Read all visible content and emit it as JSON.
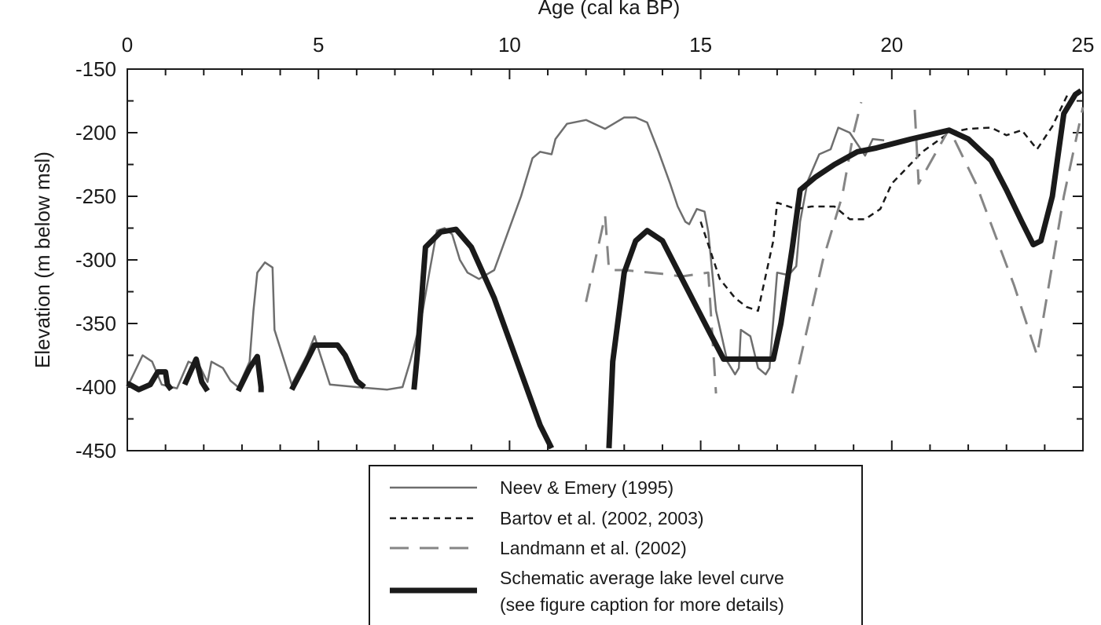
{
  "chart_data": {
    "type": "line",
    "x_label": "Age (cal ka BP)",
    "y_label": "Elevation (m below msl)",
    "xlim": [
      0,
      25
    ],
    "xticks": [
      0,
      5,
      10,
      15,
      20,
      25
    ],
    "xminorticks": [
      1,
      2,
      3,
      4,
      6,
      7,
      8,
      9,
      11,
      12,
      13,
      14,
      16,
      17,
      18,
      19,
      21,
      22,
      23,
      24
    ],
    "ylim": [
      -450,
      -150
    ],
    "yticks": [
      -450,
      -400,
      -350,
      -300,
      -250,
      -200,
      -150
    ],
    "yminorticks": [
      -425,
      -375,
      -325,
      -275,
      -225,
      -175
    ],
    "series": [
      {
        "name": "Neev & Emery (1995)",
        "color": "#6e6e6e",
        "width": 2.5,
        "dash": "none",
        "x": [
          0,
          0.4,
          0.65,
          0.9,
          1.3,
          1.6,
          1.9,
          2.1,
          2.2,
          2.5,
          2.7,
          2.9,
          3.2,
          3.3,
          3.4,
          3.6,
          3.8,
          3.85,
          4.3,
          4.7,
          4.9,
          5,
          5.3,
          6,
          6.8,
          7.2,
          7.4,
          7.7,
          7.9,
          8.1,
          8.3,
          8.5,
          8.7,
          8.9,
          9.2,
          9.6,
          10.3,
          10.6,
          10.8,
          11.1,
          11.2,
          11.5,
          12,
          12.5,
          13,
          13.3,
          13.6,
          13.9,
          14.2,
          14.4,
          14.6,
          14.7,
          14.9,
          15.1,
          15.2,
          15.4,
          15.7,
          15.9,
          16,
          16.05,
          16.3,
          16.5,
          16.7,
          16.8,
          17,
          17.3,
          17.5,
          17.6,
          17.8,
          18.1,
          18.4,
          18.6,
          18.9,
          19.3,
          19.5,
          19.8
        ],
        "values": [
          -400,
          -375,
          -380,
          -398,
          -401,
          -380,
          -384,
          -396,
          -380,
          -385,
          -395,
          -400,
          -380,
          -340,
          -310,
          -302,
          -306,
          -355,
          -398,
          -375,
          -360,
          -370,
          -398,
          -400,
          -402,
          -400,
          -380,
          -345,
          -310,
          -277,
          -275,
          -280,
          -300,
          -310,
          -315,
          -308,
          -250,
          -220,
          -215,
          -217,
          -205,
          -193,
          -190,
          -197,
          -188,
          -188,
          -192,
          -215,
          -240,
          -258,
          -270,
          -272,
          -260,
          -262,
          -278,
          -340,
          -380,
          -390,
          -385,
          -355,
          -360,
          -385,
          -390,
          -385,
          -310,
          -312,
          -305,
          -270,
          -238,
          -217,
          -213,
          -196,
          -200,
          -218,
          -205,
          -206
        ]
      },
      {
        "name": "Bartov et al. (2002, 2003)",
        "color": "#1a1a1a",
        "width": 2.5,
        "dash": "8 6",
        "x": [
          15,
          15.5,
          15.9,
          16.2,
          16.5,
          16.9,
          17,
          17.5,
          17.9,
          18.5,
          18.9,
          19.3,
          19.7,
          20,
          20.8,
          21.5,
          22,
          22.6,
          23,
          23.4,
          23.8,
          24.2,
          24.6
        ],
        "values": [
          -270,
          -315,
          -330,
          -337,
          -340,
          -285,
          -255,
          -260,
          -258,
          -258,
          -268,
          -268,
          -260,
          -240,
          -215,
          -200,
          -197,
          -196,
          -202,
          -198,
          -213,
          -195,
          -170
        ]
      },
      {
        "name": "Landmann et al. (2002)",
        "color": "#858585",
        "width": 3,
        "dash": "24 14",
        "x": [
          12,
          12.5,
          12.6,
          13,
          14,
          14.5,
          15.2,
          15.4,
          15.4,
          17.4,
          18.2,
          18.7,
          19,
          19.2,
          19.2,
          20.6,
          20.7,
          20.7,
          21.5,
          22.2,
          23.2,
          23.8,
          24.5,
          25
        ],
        "values": [
          -333,
          -265,
          -308,
          -308,
          -311,
          -313,
          -310,
          -405,
          null,
          -405,
          -300,
          -250,
          -200,
          -176,
          null,
          -182,
          -238,
          -240,
          -197,
          -240,
          -320,
          -375,
          -250,
          -180
        ]
      },
      {
        "name": "Schematic average lake level curve",
        "note": "(see figure caption for more details)",
        "color": "#1a1a1a",
        "width": 7,
        "dash": "none",
        "x": [
          0,
          0.3,
          0.6,
          0.8,
          1.0,
          1.05,
          1.15,
          1.15,
          1.5,
          1.8,
          1.95,
          2.1,
          2.1,
          2.9,
          3.2,
          3.4,
          3.5,
          3.5,
          3.5,
          4.3,
          4.6,
          4.9,
          5.5,
          5.7,
          6,
          6.2,
          6.2,
          7.5,
          7.6,
          7.8,
          8.2,
          8.6,
          9,
          9.6,
          10.2,
          10.8,
          11.1,
          11.1,
          12.6,
          12.7,
          13,
          13.3,
          13.6,
          14,
          14.6,
          15.2,
          15.6,
          16,
          16.5,
          16.9,
          17.1,
          17.4,
          17.6,
          18,
          18.5,
          19.1,
          19.6,
          20.5,
          21.5,
          22,
          22.6,
          23,
          23.4,
          23.7,
          23.9,
          24.2,
          24.5,
          24.8,
          24.95
        ],
        "values": [
          -397,
          -402,
          -398,
          -388,
          -388,
          -398,
          -402,
          null,
          -398,
          -378,
          -396,
          -403,
          null,
          -403,
          -385,
          -376,
          -400,
          -404,
          null,
          -402,
          -385,
          -367,
          -367,
          -375,
          -395,
          -400,
          null,
          -402,
          -370,
          -290,
          -278,
          -276,
          -290,
          -330,
          -380,
          -430,
          -448,
          null,
          -448,
          -380,
          -310,
          -285,
          -277,
          -285,
          -320,
          -355,
          -378,
          -378,
          -378,
          -378,
          -350,
          -290,
          -245,
          -235,
          -225,
          -215,
          -212,
          -205,
          -198,
          -205,
          -222,
          -245,
          -270,
          -288,
          -285,
          -250,
          -185,
          -170,
          -167
        ]
      }
    ]
  }
}
